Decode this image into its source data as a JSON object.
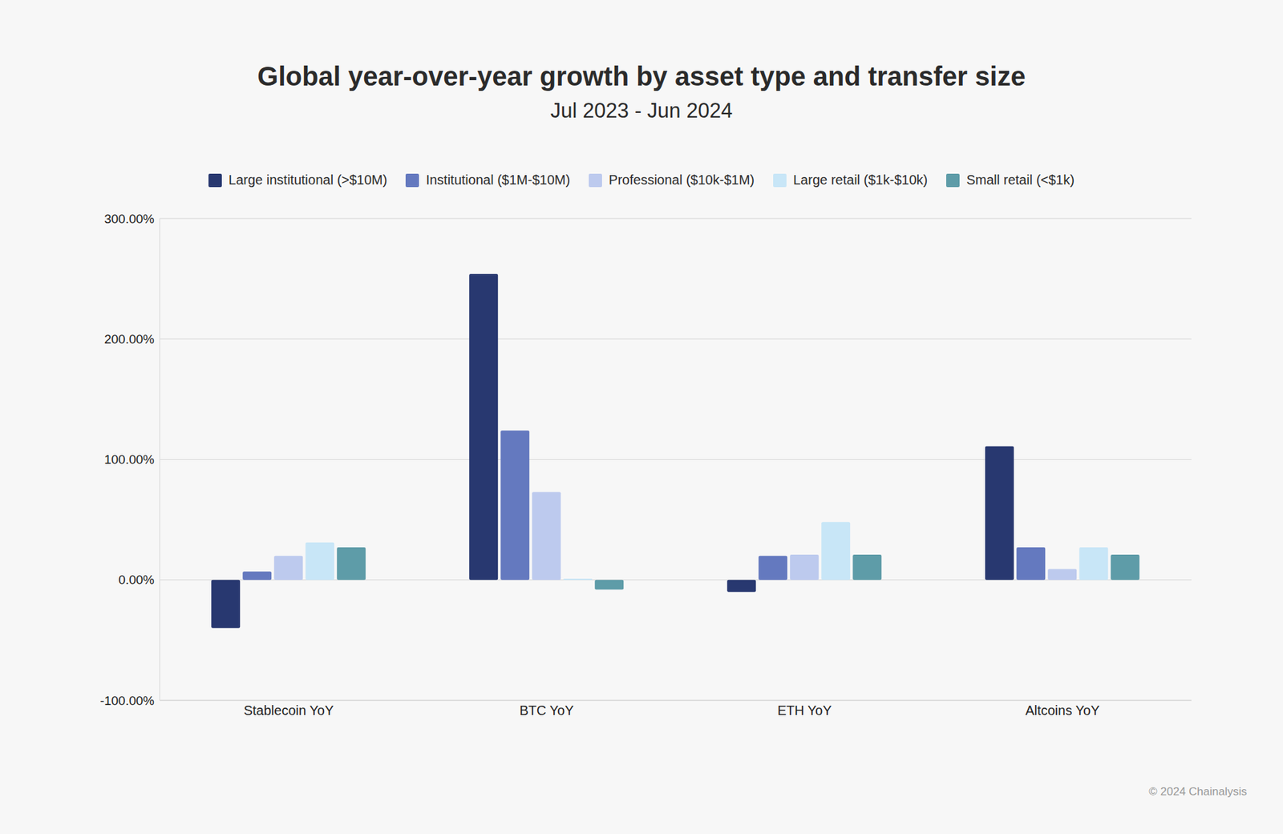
{
  "chart_data": {
    "type": "bar",
    "title": "Global year-over-year growth by asset type and transfer size",
    "subtitle": "Jul 2023 - Jun 2024",
    "source": "© 2024 Chainalysis",
    "categories": [
      "Stablecoin YoY",
      "BTC YoY",
      "ETH YoY",
      "Altcoins YoY"
    ],
    "series": [
      {
        "name": "Large institutional (>$10M)",
        "color": "#283870",
        "values": [
          -40,
          254,
          -10,
          111
        ]
      },
      {
        "name": "Institutional ($1M-$10M)",
        "color": "#6479BF",
        "values": [
          7,
          124,
          20,
          27
        ]
      },
      {
        "name": "Professional ($10k-$1M)",
        "color": "#BDCAEE",
        "values": [
          20,
          73,
          21,
          9
        ]
      },
      {
        "name": "Large retail ($1k-$10k)",
        "color": "#C8E6F7",
        "values": [
          31,
          1,
          48,
          27
        ]
      },
      {
        "name": "Small retail (<$1k)",
        "color": "#5E9CA8",
        "values": [
          27,
          -8,
          21,
          21
        ]
      }
    ],
    "ylim": [
      -100,
      300
    ],
    "yticks": [
      {
        "value": -100,
        "label": "-100.00%"
      },
      {
        "value": 0,
        "label": "0.00%"
      },
      {
        "value": 100,
        "label": "100.00%"
      },
      {
        "value": 200,
        "label": "200.00%"
      },
      {
        "value": 300,
        "label": "300.00%"
      }
    ],
    "grid": true,
    "legend": "top"
  }
}
